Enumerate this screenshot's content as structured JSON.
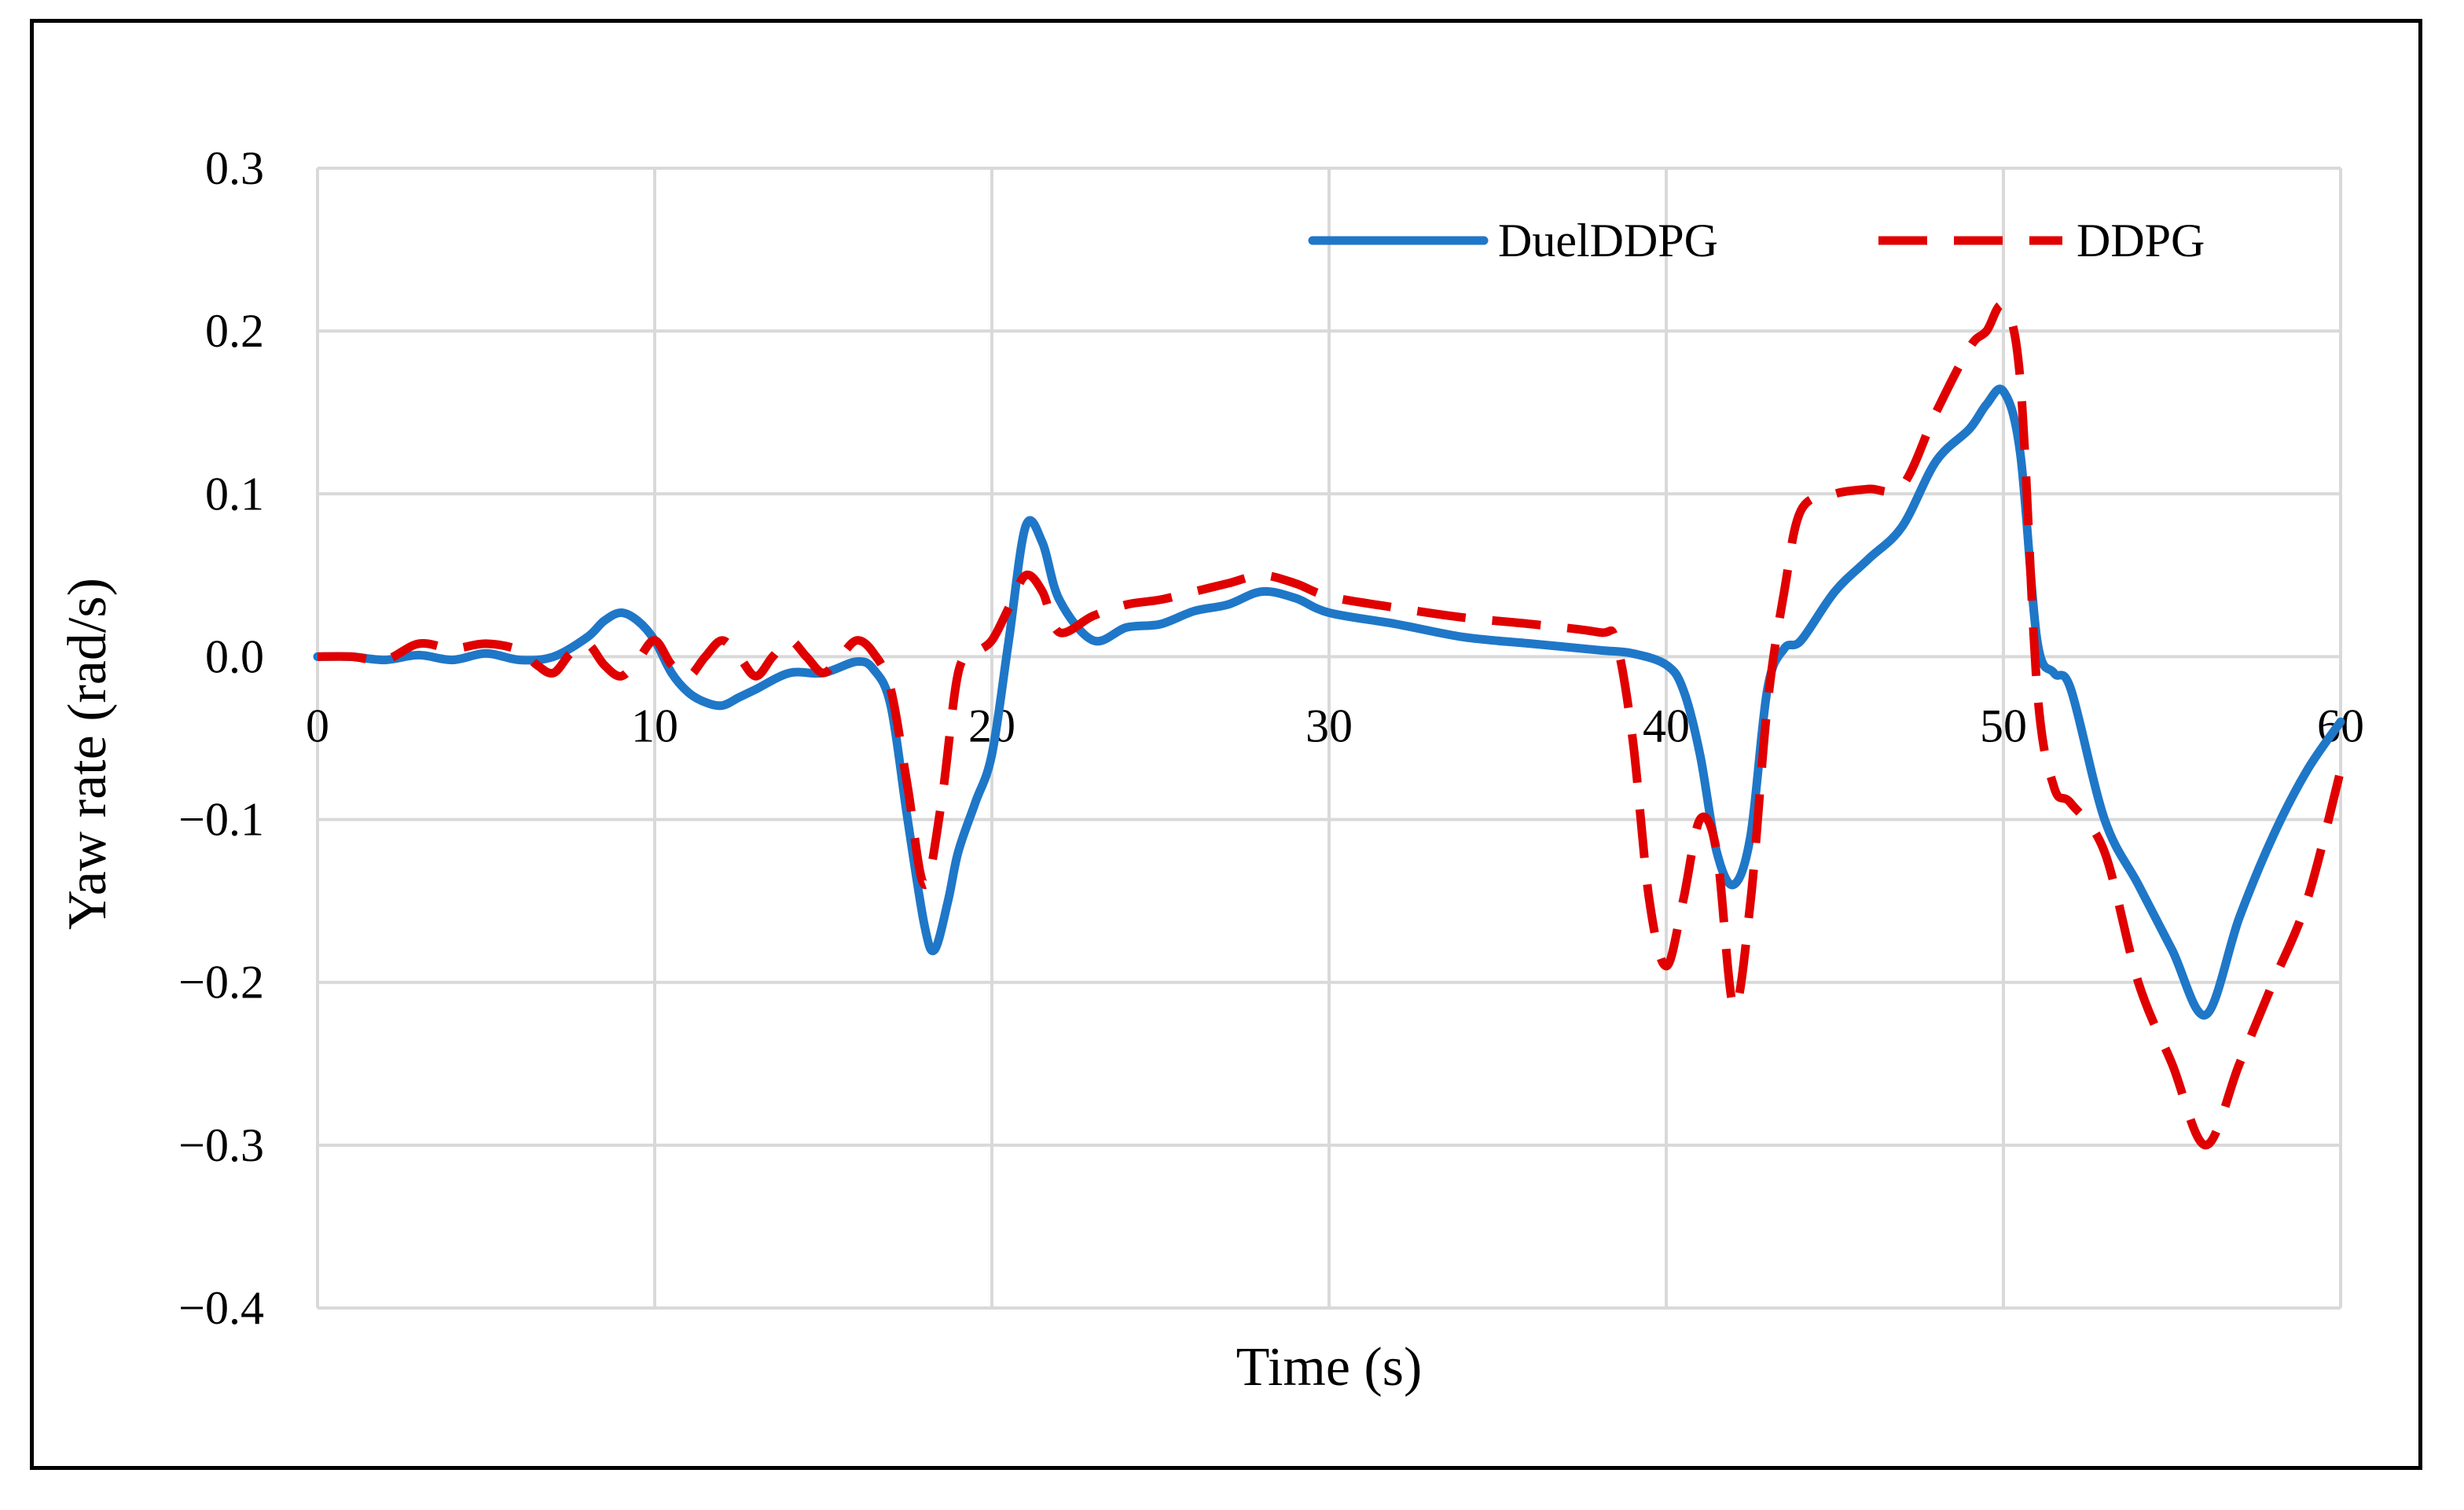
{
  "chart_data": {
    "type": "line",
    "title": "",
    "xlabel": "Time (s)",
    "ylabel": "Yaw rate (rad/s)",
    "xlim": [
      0,
      60
    ],
    "ylim": [
      -0.4,
      0.3
    ],
    "x_ticks": [
      "0",
      "10",
      "20",
      "30",
      "40",
      "50",
      "60"
    ],
    "y_ticks": [
      "0.3",
      "0.2",
      "0.1",
      "0.0",
      "−0.1",
      "−0.2",
      "−0.3",
      "−0.4"
    ],
    "grid": true,
    "legend_position": "top-right",
    "series": [
      {
        "name": "DuelDDPG",
        "color": "#1f77c8",
        "style": "solid",
        "x": [
          0,
          1,
          2,
          3,
          4,
          5,
          6,
          7,
          8,
          8.5,
          9,
          9.5,
          10,
          10.5,
          11,
          11.5,
          12,
          12.5,
          13,
          14,
          15,
          16,
          16.5,
          17,
          17.5,
          18,
          18.3,
          18.7,
          19,
          19.5,
          20,
          20.5,
          21,
          21.5,
          22,
          23,
          24,
          25,
          26,
          27,
          28,
          29,
          30,
          32,
          34,
          36,
          38,
          39,
          40,
          40.5,
          41,
          41.5,
          42,
          42.5,
          43,
          43.5,
          44,
          45,
          46,
          47,
          48,
          49,
          49.5,
          50,
          50.5,
          51,
          51.5,
          52,
          53,
          54,
          55,
          56,
          57,
          58,
          59,
          60
        ],
        "y": [
          0,
          0,
          -0.002,
          0.001,
          -0.002,
          0.002,
          -0.002,
          0,
          0.012,
          0.022,
          0.027,
          0.022,
          0.01,
          -0.01,
          -0.022,
          -0.028,
          -0.03,
          -0.025,
          -0.02,
          -0.01,
          -0.01,
          -0.003,
          -0.008,
          -0.03,
          -0.1,
          -0.165,
          -0.18,
          -0.15,
          -0.12,
          -0.09,
          -0.06,
          0.01,
          0.08,
          0.07,
          0.035,
          0.01,
          0.018,
          0.02,
          0.028,
          0.032,
          0.04,
          0.036,
          0.027,
          0.02,
          0.012,
          0.008,
          0.004,
          0.002,
          -0.005,
          -0.02,
          -0.06,
          -0.12,
          -0.14,
          -0.11,
          -0.02,
          0.005,
          0.01,
          0.04,
          0.06,
          0.08,
          0.12,
          0.14,
          0.155,
          0.163,
          0.125,
          0.01,
          -0.01,
          -0.02,
          -0.1,
          -0.14,
          -0.18,
          -0.22,
          -0.16,
          -0.11,
          -0.07,
          -0.04
        ]
      },
      {
        "name": "DDPG",
        "color": "#e00000",
        "style": "dashed",
        "x": [
          0,
          1,
          2,
          3,
          4,
          5,
          6,
          6.5,
          7,
          7.5,
          8,
          8.5,
          9,
          9.5,
          10,
          10.5,
          11,
          11.5,
          12,
          12.5,
          13,
          13.5,
          14,
          14.5,
          15,
          15.5,
          16,
          16.5,
          17,
          17.5,
          18,
          18.5,
          19,
          19.5,
          20,
          20.5,
          21,
          21.5,
          22,
          23,
          24,
          25,
          26,
          27,
          28,
          29,
          30,
          32,
          34,
          36,
          38,
          38.5,
          39,
          39.5,
          40,
          40.5,
          41,
          41.5,
          42,
          42.5,
          43,
          43.5,
          44,
          45,
          46,
          47,
          48,
          49,
          49.5,
          50,
          50.5,
          51,
          51.5,
          52,
          53,
          54,
          55,
          56,
          57,
          58,
          59,
          60
        ],
        "y": [
          0,
          0,
          -0.002,
          0.008,
          0.005,
          0.008,
          0.004,
          -0.005,
          -0.01,
          0.002,
          0.008,
          -0.005,
          -0.012,
          -0.002,
          0.01,
          -0.005,
          -0.012,
          0,
          0.01,
          0,
          -0.012,
          0,
          0.01,
          0,
          -0.01,
          0,
          0.01,
          0.002,
          -0.02,
          -0.08,
          -0.14,
          -0.09,
          -0.01,
          0.002,
          0.01,
          0.03,
          0.05,
          0.04,
          0.015,
          0.025,
          0.032,
          0.035,
          0.04,
          0.045,
          0.05,
          0.045,
          0.037,
          0.03,
          0.024,
          0.02,
          0.015,
          0.01,
          -0.05,
          -0.15,
          -0.19,
          -0.15,
          -0.1,
          -0.12,
          -0.215,
          -0.15,
          -0.03,
          0.04,
          0.09,
          0.1,
          0.103,
          0.105,
          0.15,
          0.19,
          0.2,
          0.215,
          0.17,
          -0.02,
          -0.08,
          -0.09,
          -0.12,
          -0.2,
          -0.25,
          -0.3,
          -0.25,
          -0.2,
          -0.15,
          -0.07
        ]
      }
    ]
  }
}
